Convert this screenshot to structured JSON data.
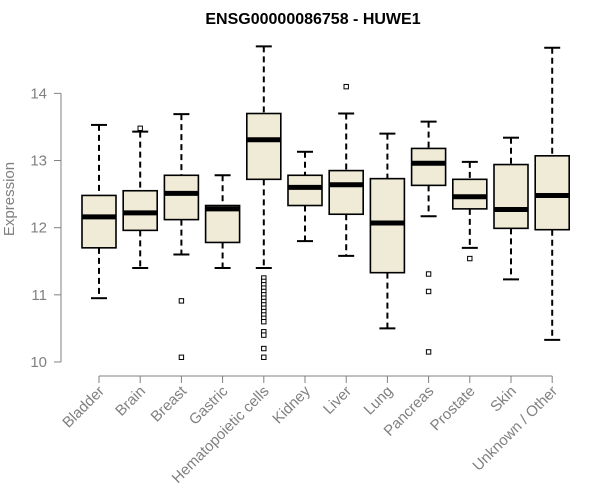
{
  "chart_data": {
    "type": "box",
    "title": "ENSG00000086758 - HUWE1",
    "xlabel": "",
    "ylabel": "Expression",
    "ylim": [
      9.97,
      14.75
    ],
    "yticks": [
      10,
      11,
      12,
      13,
      14
    ],
    "box_fill": "#f0ebd6",
    "categories": [
      "Bladder",
      "Brain",
      "Breast",
      "Gastric",
      "Hematopoietic cells",
      "Kidney",
      "Liver",
      "Lung",
      "Pancreas",
      "Prostate",
      "Skin",
      "Unknown / Other"
    ],
    "boxes": [
      {
        "category": "Bladder",
        "min": 10.95,
        "q1": 11.7,
        "median": 12.16,
        "q3": 12.48,
        "max": 13.53,
        "outliers": []
      },
      {
        "category": "Brain",
        "min": 11.4,
        "q1": 11.96,
        "median": 12.22,
        "q3": 12.55,
        "max": 13.43,
        "outliers": [
          13.48
        ]
      },
      {
        "category": "Breast",
        "min": 11.6,
        "q1": 12.12,
        "median": 12.51,
        "q3": 12.78,
        "max": 13.69,
        "outliers": [
          10.91,
          10.07
        ]
      },
      {
        "category": "Gastric",
        "min": 11.4,
        "q1": 11.78,
        "median": 12.28,
        "q3": 12.33,
        "max": 12.78,
        "outliers": []
      },
      {
        "category": "Hematopoietic cells",
        "min": 11.4,
        "q1": 12.72,
        "median": 13.31,
        "q3": 13.7,
        "max": 14.7,
        "outliers": [
          11.25,
          11.2,
          11.15,
          11.1,
          11.05,
          11.0,
          10.95,
          10.9,
          10.85,
          10.8,
          10.75,
          10.7,
          10.65,
          10.6,
          10.45,
          10.4,
          10.2,
          10.07
        ]
      },
      {
        "category": "Kidney",
        "min": 11.8,
        "q1": 12.33,
        "median": 12.6,
        "q3": 12.78,
        "max": 13.13,
        "outliers": []
      },
      {
        "category": "Liver",
        "min": 11.58,
        "q1": 12.2,
        "median": 12.64,
        "q3": 12.85,
        "max": 13.7,
        "outliers": [
          14.1
        ]
      },
      {
        "category": "Lung",
        "min": 10.5,
        "q1": 11.33,
        "median": 12.07,
        "q3": 12.73,
        "max": 13.4,
        "outliers": []
      },
      {
        "category": "Pancreas",
        "min": 12.17,
        "q1": 12.63,
        "median": 12.96,
        "q3": 13.18,
        "max": 13.58,
        "outliers": [
          11.31,
          11.05,
          10.15
        ]
      },
      {
        "category": "Prostate",
        "min": 11.7,
        "q1": 12.28,
        "median": 12.46,
        "q3": 12.72,
        "max": 12.98,
        "outliers": [
          11.54
        ]
      },
      {
        "category": "Skin",
        "min": 11.23,
        "q1": 11.99,
        "median": 12.27,
        "q3": 12.94,
        "max": 13.34,
        "outliers": []
      },
      {
        "category": "Unknown / Other",
        "min": 10.33,
        "q1": 11.97,
        "median": 12.48,
        "q3": 13.07,
        "max": 14.68,
        "outliers": []
      }
    ]
  }
}
